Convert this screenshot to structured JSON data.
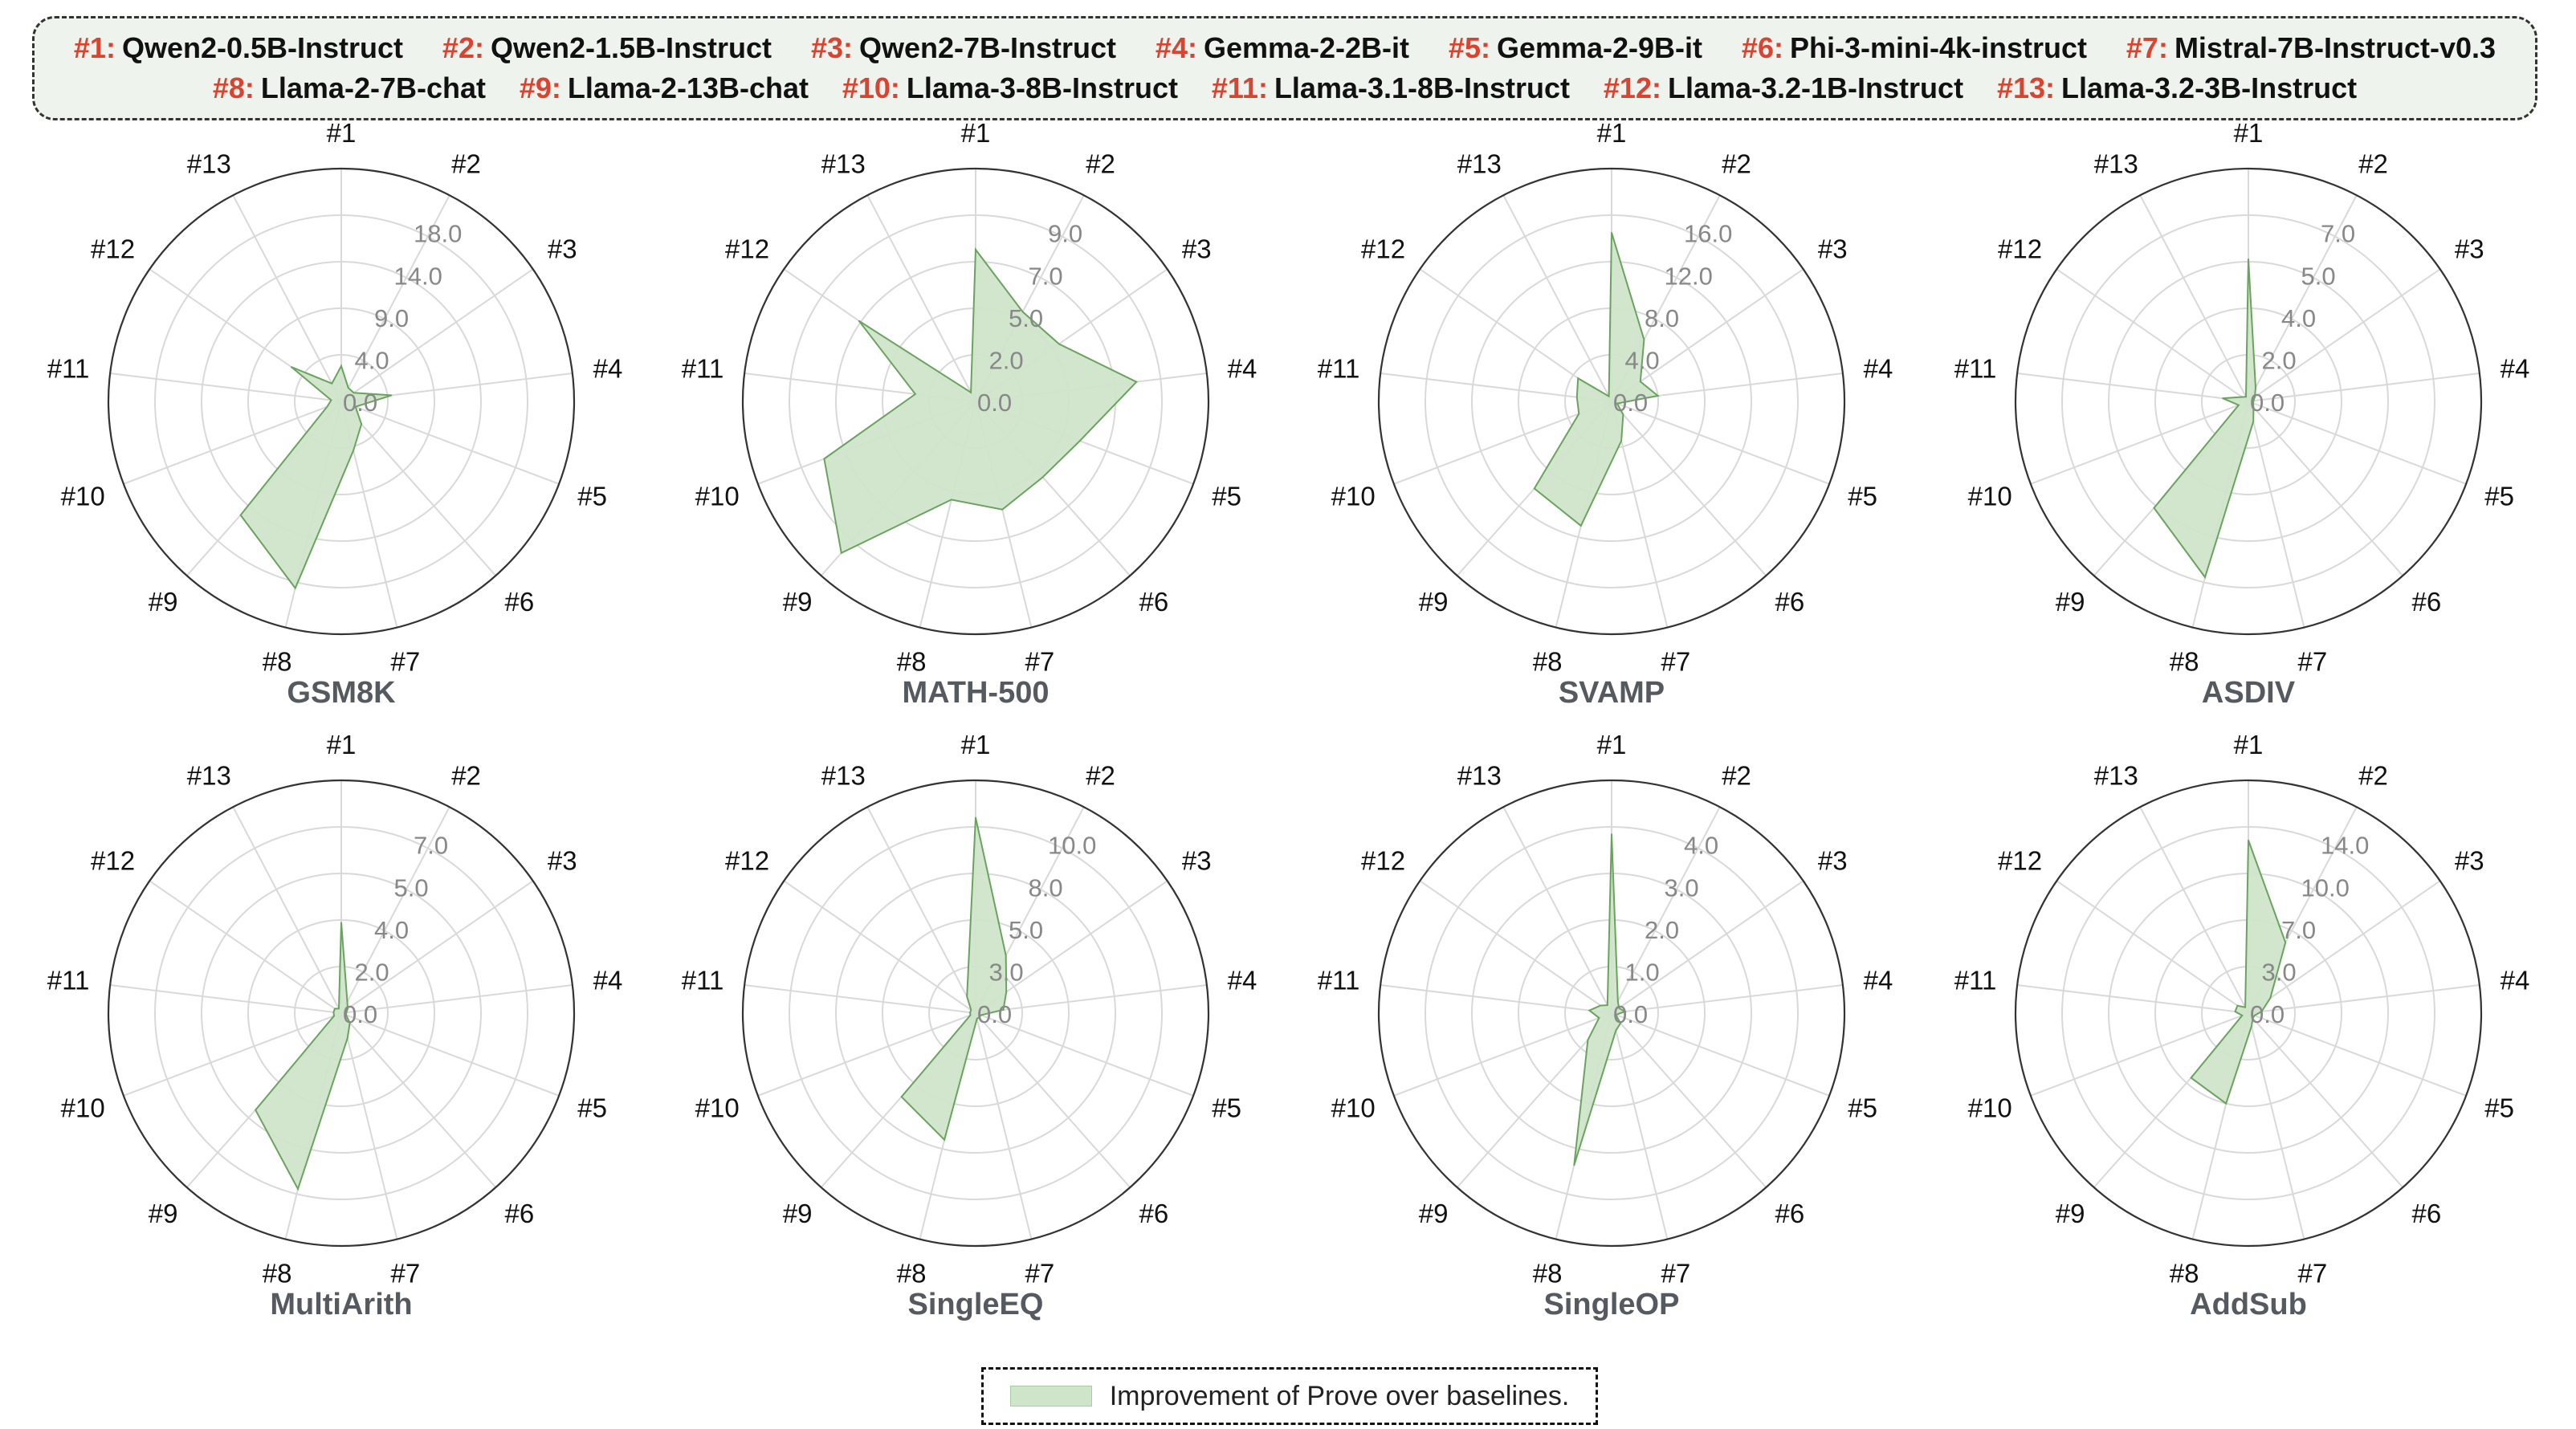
{
  "legend": {
    "models": [
      {
        "num": "#1:",
        "name": "Qwen2-0.5B-Instruct"
      },
      {
        "num": "#2:",
        "name": "Qwen2-1.5B-Instruct"
      },
      {
        "num": "#3:",
        "name": "Qwen2-7B-Instruct"
      },
      {
        "num": "#4:",
        "name": "Gemma-2-2B-it"
      },
      {
        "num": "#5:",
        "name": "Gemma-2-9B-it"
      },
      {
        "num": "#6:",
        "name": "Phi-3-mini-4k-instruct"
      },
      {
        "num": "#7:",
        "name": "Mistral-7B-Instruct-v0.3"
      },
      {
        "num": "#8:",
        "name": "Llama-2-7B-chat"
      },
      {
        "num": "#9:",
        "name": "Llama-2-13B-chat"
      },
      {
        "num": "#10:",
        "name": "Llama-3-8B-Instruct"
      },
      {
        "num": "#11:",
        "name": "Llama-3.1-8B-Instruct"
      },
      {
        "num": "#12:",
        "name": "Llama-3.2-1B-Instruct"
      },
      {
        "num": "#13:",
        "name": "Llama-3.2-3B-Instruct"
      }
    ],
    "series_label": "Improvement of Prove over baselines."
  },
  "colors": {
    "fill": "#cfe5c9",
    "stroke": "#6aa35e",
    "legend_number": "#d9432f",
    "grid": "#d9d9d9",
    "tick_text": "#888888",
    "title_text": "#555a60"
  },
  "chart_data": [
    {
      "type": "radar",
      "title": "GSM8K",
      "axes": [
        "#1",
        "#2",
        "#3",
        "#4",
        "#5",
        "#6",
        "#7",
        "#8",
        "#9",
        "#10",
        "#11",
        "#12",
        "#13"
      ],
      "ticks": [
        "0.0",
        "4.0",
        "9.0",
        "14.0",
        "18.0"
      ],
      "rmax": 23,
      "values": [
        3.5,
        1.5,
        1.5,
        5.0,
        1.5,
        3.0,
        5.0,
        19.0,
        15.0,
        1.5,
        1.0,
        6.0,
        2.0
      ]
    },
    {
      "type": "radar",
      "title": "MATH-500",
      "axes": [
        "#1",
        "#2",
        "#3",
        "#4",
        "#5",
        "#6",
        "#7",
        "#8",
        "#9",
        "#10",
        "#11",
        "#12",
        "#13"
      ],
      "ticks": [
        "0.0",
        "2.0",
        "5.0",
        "7.0",
        "9.0"
      ],
      "rmax": 11.5,
      "values": [
        7.5,
        5.0,
        5.0,
        8.0,
        5.5,
        5.0,
        5.5,
        5.0,
        10.0,
        8.0,
        3.0,
        7.0,
        0.5
      ]
    },
    {
      "type": "radar",
      "title": "SVAMP",
      "axes": [
        "#1",
        "#2",
        "#3",
        "#4",
        "#5",
        "#6",
        "#7",
        "#8",
        "#9",
        "#10",
        "#11",
        "#12",
        "#13"
      ],
      "ticks": [
        "0.0",
        "4.0",
        "8.0",
        "12.0",
        "16.0"
      ],
      "rmax": 20,
      "values": [
        14.5,
        6.0,
        3.0,
        4.0,
        0.5,
        1.5,
        3.5,
        11.0,
        10.0,
        3.0,
        3.0,
        3.5,
        0.5
      ]
    },
    {
      "type": "radar",
      "title": "ASDIV",
      "axes": [
        "#1",
        "#2",
        "#3",
        "#4",
        "#5",
        "#6",
        "#7",
        "#8",
        "#9",
        "#10",
        "#11",
        "#12",
        "#13"
      ],
      "ticks": [
        "0.0",
        "2.0",
        "4.0",
        "5.0",
        "7.0"
      ],
      "rmax": 9,
      "values": [
        5.5,
        0.6,
        0.3,
        0.2,
        0.2,
        0.3,
        0.8,
        7.0,
        5.5,
        0.4,
        1.0,
        0.3,
        0.2
      ]
    },
    {
      "type": "radar",
      "title": "MultiArith",
      "axes": [
        "#1",
        "#2",
        "#3",
        "#4",
        "#5",
        "#6",
        "#7",
        "#8",
        "#9",
        "#10",
        "#11",
        "#12",
        "#13"
      ],
      "ticks": [
        "0.0",
        "2.0",
        "4.0",
        "5.0",
        "7.0"
      ],
      "rmax": 9,
      "values": [
        3.5,
        0.5,
        0.3,
        0.2,
        0.2,
        0.5,
        1.0,
        7.0,
        5.0,
        0.3,
        0.3,
        0.3,
        0.2
      ]
    },
    {
      "type": "radar",
      "title": "SingleEQ",
      "axes": [
        "#1",
        "#2",
        "#3",
        "#4",
        "#5",
        "#6",
        "#7",
        "#8",
        "#9",
        "#10",
        "#11",
        "#12",
        "#13"
      ],
      "ticks": [
        "0.0",
        "3.0",
        "5.0",
        "8.0",
        "10.0"
      ],
      "rmax": 12.5,
      "values": [
        10.5,
        3.5,
        2.0,
        1.5,
        0.3,
        0.3,
        0.3,
        7.0,
        6.0,
        0.3,
        0.3,
        0.3,
        1.0
      ]
    },
    {
      "type": "radar",
      "title": "SingleOP",
      "axes": [
        "#1",
        "#2",
        "#3",
        "#4",
        "#5",
        "#6",
        "#7",
        "#8",
        "#9",
        "#10",
        "#11",
        "#12",
        "#13"
      ],
      "ticks": [
        "0.0",
        "1.0",
        "2.0",
        "3.0",
        "4.0"
      ],
      "rmax": 5.2,
      "values": [
        4.0,
        0.3,
        0.2,
        0.3,
        0.1,
        0.3,
        0.4,
        3.5,
        0.8,
        0.3,
        0.5,
        0.3,
        0.2
      ]
    },
    {
      "type": "radar",
      "title": "AddSub",
      "axes": [
        "#1",
        "#2",
        "#3",
        "#4",
        "#5",
        "#6",
        "#7",
        "#8",
        "#9",
        "#10",
        "#11",
        "#12",
        "#13"
      ],
      "ticks": [
        "0.0",
        "3.0",
        "7.0",
        "10.0",
        "14.0"
      ],
      "rmax": 17.5,
      "values": [
        13.0,
        6.0,
        2.0,
        1.0,
        0.5,
        0.5,
        1.0,
        7.0,
        6.5,
        0.5,
        1.0,
        1.0,
        0.5
      ]
    }
  ]
}
